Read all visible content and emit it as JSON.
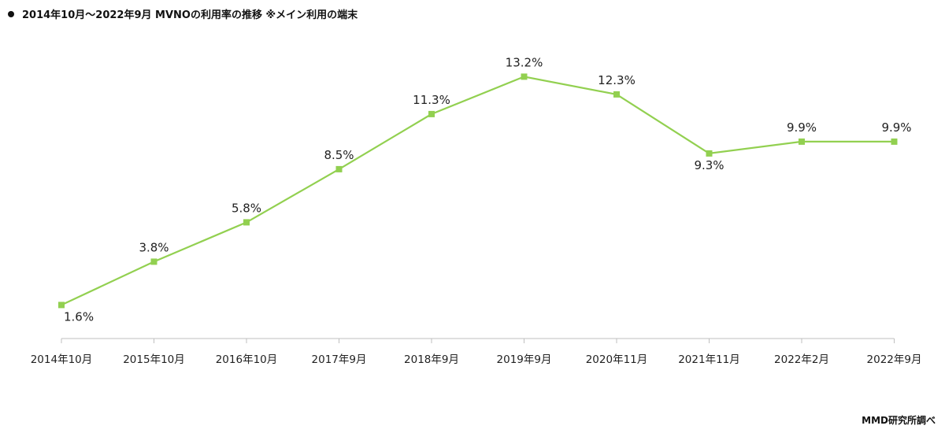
{
  "title": "2014年10月～2022年9月  MVNOの利用率の推移  ※メイン利用の端末",
  "source": "MMD研究所調べ",
  "chart_data": {
    "type": "line",
    "categories": [
      "2014年10月",
      "2015年10月",
      "2016年10月",
      "2017年9月",
      "2018年9月",
      "2019年9月",
      "2020年11月",
      "2021年11月",
      "2022年2月",
      "2022年9月"
    ],
    "series": [
      {
        "values": [
          1.6,
          3.8,
          5.8,
          8.5,
          11.3,
          13.2,
          12.3,
          9.3,
          9.9,
          9.9
        ],
        "labels": [
          "1.6%",
          "3.8%",
          "5.8%",
          "8.5%",
          "11.3%",
          "13.2%",
          "12.3%",
          "9.3%",
          "9.9%",
          "9.9%"
        ],
        "color": "#92d050"
      }
    ],
    "xlabel": "",
    "ylabel": "",
    "ylim": [
      0,
      15
    ],
    "grid": false,
    "legend": "none"
  }
}
